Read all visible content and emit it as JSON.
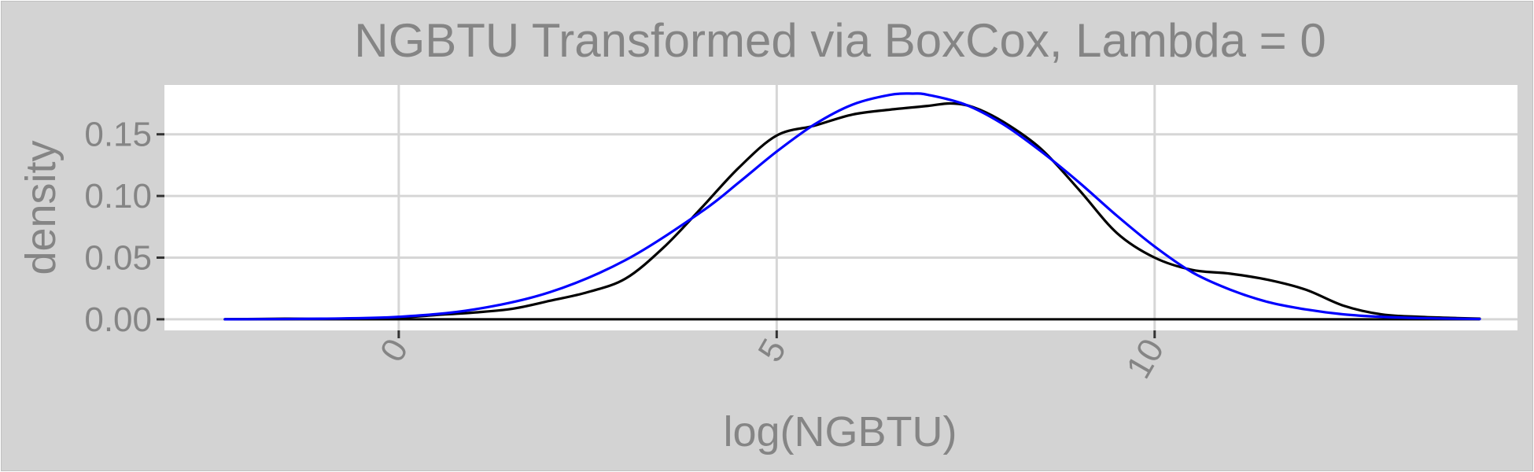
{
  "chart_data": {
    "type": "line",
    "title": "NGBTU Transformed via BoxCox, Lambda = 0",
    "xlabel": "log(NGBTU)",
    "ylabel": "density",
    "xlim": [
      -3.1,
      14.8
    ],
    "ylim": [
      -0.009,
      0.19
    ],
    "x_ticks": [
      0,
      5,
      10
    ],
    "x_tick_labels": [
      "0",
      "5",
      "10"
    ],
    "y_ticks": [
      0.0,
      0.05,
      0.1,
      0.15
    ],
    "y_tick_labels": [
      "0.00",
      "0.05",
      "0.10",
      "0.15"
    ],
    "grid": true,
    "legend": "none",
    "series": [
      {
        "color": "#000000",
        "kind": "kernel density",
        "x": [
          -2.3,
          -1.5,
          -1.0,
          0.0,
          0.5,
          1.0,
          1.5,
          2.0,
          2.5,
          3.0,
          3.5,
          4.0,
          4.5,
          5.0,
          5.5,
          6.0,
          6.5,
          7.0,
          7.3,
          7.6,
          8.0,
          8.5,
          9.0,
          9.5,
          10.0,
          10.5,
          11.0,
          11.5,
          12.0,
          12.5,
          13.0,
          13.5,
          14.0,
          14.3
        ],
        "y": [
          0.0,
          0.0005,
          0.0004,
          0.0015,
          0.0035,
          0.0055,
          0.0085,
          0.015,
          0.022,
          0.033,
          0.058,
          0.09,
          0.123,
          0.149,
          0.157,
          0.166,
          0.17,
          0.173,
          0.175,
          0.172,
          0.16,
          0.138,
          0.105,
          0.07,
          0.05,
          0.04,
          0.037,
          0.032,
          0.024,
          0.011,
          0.004,
          0.002,
          0.001,
          0.0005
        ]
      },
      {
        "color": "#0000ff",
        "kind": "normal fit",
        "x": [
          -2.3,
          -1.0,
          0.0,
          1.0,
          2.0,
          3.0,
          4.0,
          4.5,
          5.0,
          5.5,
          6.0,
          6.5,
          6.8,
          7.0,
          7.5,
          8.0,
          8.5,
          9.0,
          9.5,
          10.0,
          10.5,
          11.0,
          11.5,
          12.0,
          12.5,
          13.0,
          13.5,
          14.3
        ],
        "y": [
          0.0,
          0.0005,
          0.002,
          0.008,
          0.022,
          0.048,
          0.087,
          0.111,
          0.136,
          0.158,
          0.174,
          0.182,
          0.183,
          0.182,
          0.174,
          0.158,
          0.136,
          0.111,
          0.084,
          0.059,
          0.038,
          0.024,
          0.014,
          0.008,
          0.004,
          0.002,
          0.001,
          0.0002
        ]
      }
    ]
  }
}
